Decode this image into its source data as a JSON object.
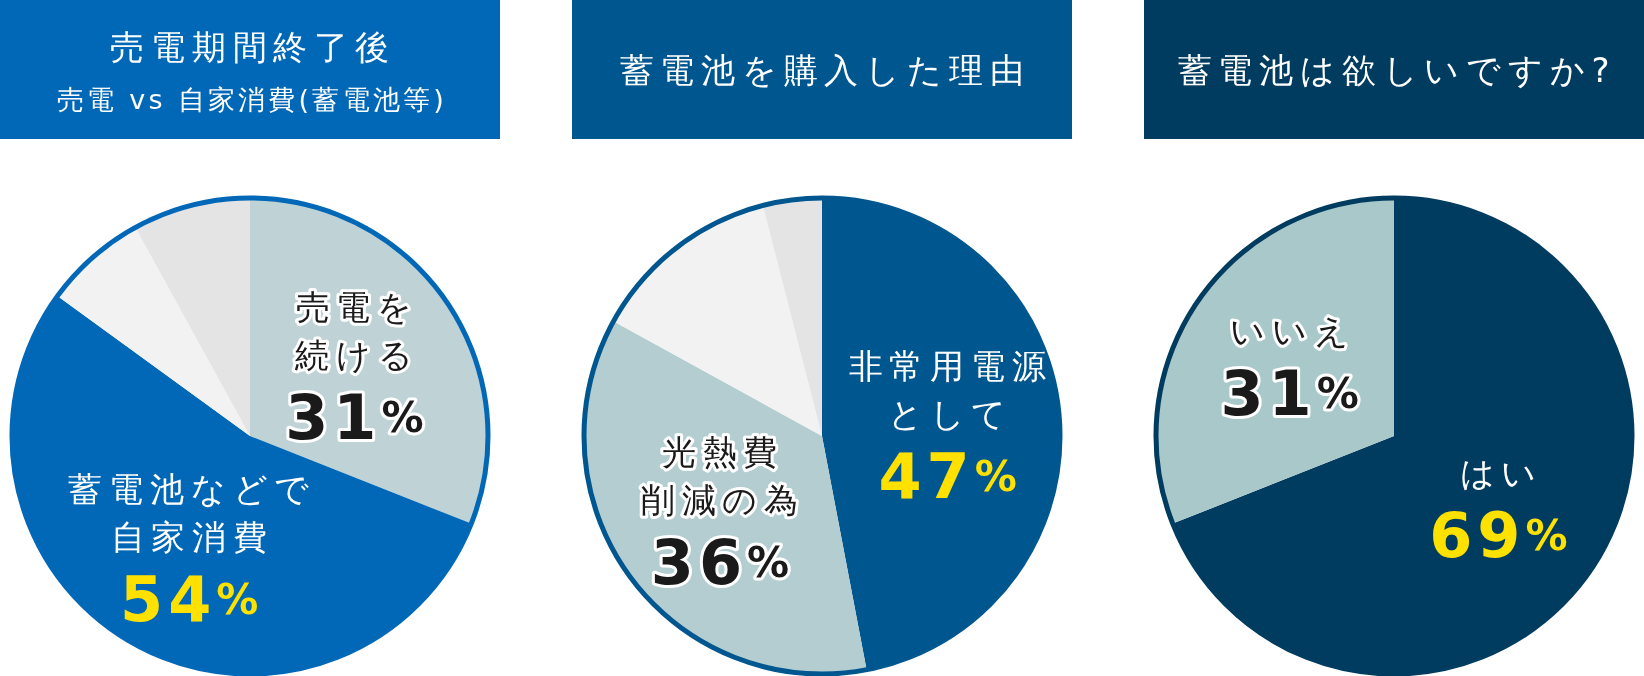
{
  "chart_data": [
    {
      "type": "pie",
      "title": "売電期間終了後",
      "subtitle": "売電 vs 自家消費(蓄電池等)",
      "categories": [
        "売電を続ける",
        "蓄電池などで自家消費",
        null,
        null
      ],
      "values": [
        31,
        54,
        7,
        8
      ],
      "colors": [
        "#bfd3d6",
        "#0068b7",
        "#f2f2f2",
        "#e4e4e4"
      ],
      "value_labels": [
        "31%",
        "54%",
        null,
        null
      ]
    },
    {
      "type": "pie",
      "title": "蓄電池を購入した理由",
      "categories": [
        "非常用電源として",
        "光熱費削減の為",
        null,
        null
      ],
      "values": [
        47,
        36,
        13,
        4
      ],
      "colors": [
        "#00568f",
        "#b3cdd0",
        "#f2f2f2",
        "#e4e4e4"
      ],
      "value_labels": [
        "47%",
        "36%",
        null,
        null
      ]
    },
    {
      "type": "pie",
      "title": "蓄電池は欲しいですか?",
      "categories": [
        "はい",
        "いいえ"
      ],
      "values": [
        69,
        31
      ],
      "colors": [
        "#003c5f",
        "#a8c8ca"
      ],
      "value_labels": [
        "69%",
        "31%"
      ]
    }
  ]
}
